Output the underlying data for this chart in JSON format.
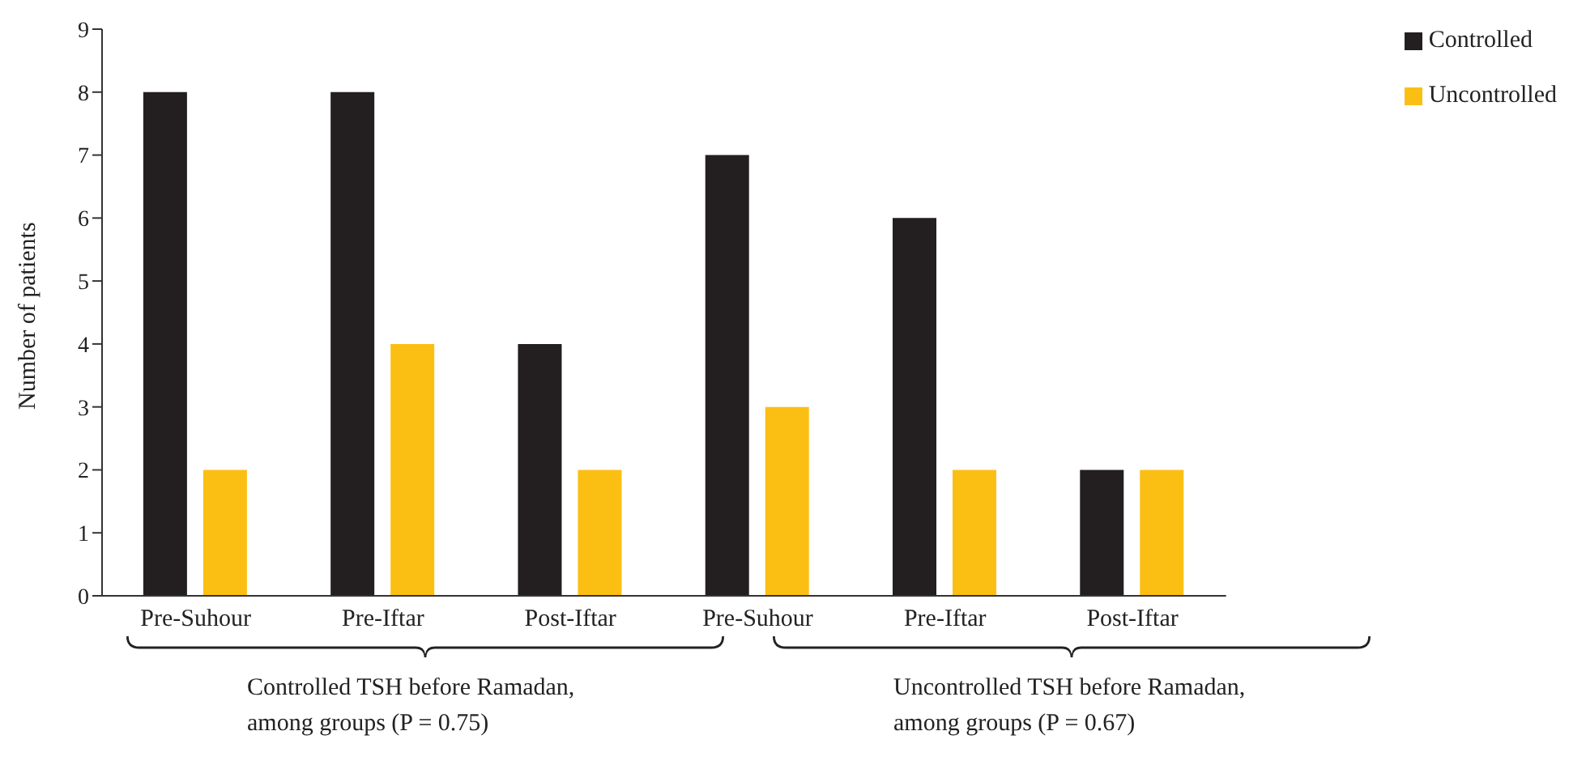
{
  "chart_data": {
    "type": "bar",
    "ylabel": "Number of patients",
    "categories": [
      "Pre-Suhour",
      "Pre-Iftar",
      "Post-Iftar",
      "Pre-Suhour",
      "Pre-Iftar",
      "Post-Iftar"
    ],
    "series": [
      {
        "name": "Controlled",
        "color": "#231f20",
        "values": [
          8,
          8,
          4,
          7,
          6,
          2
        ]
      },
      {
        "name": "Uncontrolled",
        "color": "#fbbf14",
        "values": [
          2,
          4,
          2,
          3,
          2,
          2
        ]
      }
    ],
    "ylim": [
      0,
      9
    ],
    "yticks": [
      0,
      1,
      2,
      3,
      4,
      5,
      6,
      7,
      8,
      9
    ],
    "grid": false,
    "legend": "top right",
    "annotations": [
      "Controlled TSH before Ramadan, among groups (P = 0.75)",
      "Uncontrolled TSH before Ramadan, among groups (P = 0.67)"
    ]
  }
}
